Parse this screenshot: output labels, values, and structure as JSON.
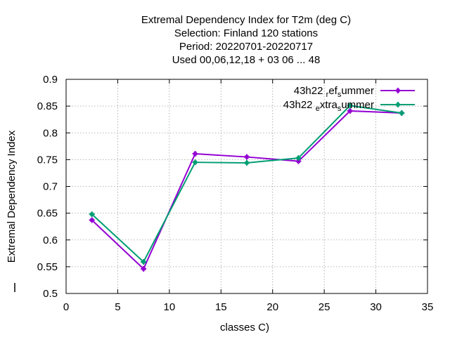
{
  "chart_data": {
    "type": "line",
    "title_lines": [
      "Extremal Dependency Index  for T2m (deg C)",
      "Selection: Finland    120 stations",
      "Period: 20220701-20220717",
      "Used  00,06,12,18  + 03 06 ... 48"
    ],
    "xlabel": "classes C)",
    "ylabel": "Extremal Dependency Index",
    "xlim": [
      0,
      35
    ],
    "ylim": [
      0.5,
      0.9
    ],
    "x_ticks": [
      "0",
      "5",
      "10",
      "15",
      "20",
      "25",
      "30",
      "35"
    ],
    "y_ticks": [
      "0.5",
      "0.55",
      "0.6",
      "0.65",
      "0.7",
      "0.75",
      "0.8",
      "0.85",
      "0.9"
    ],
    "grid": true,
    "legend_position": "top-right",
    "series": [
      {
        "legend_parts": [
          "43h22 ",
          "r",
          "ef",
          "s",
          "ummer"
        ],
        "color": "#9400d3",
        "x": [
          2.5,
          7.5,
          12.5,
          17.5,
          22.5,
          27.5,
          32.5
        ],
        "y": [
          0.637,
          0.546,
          0.761,
          0.755,
          0.747,
          0.841,
          0.837
        ]
      },
      {
        "legend_parts": [
          "43h22 ",
          "e",
          "xtra",
          "s",
          "ummer"
        ],
        "color": "#009e73",
        "x": [
          2.5,
          7.5,
          12.5,
          17.5,
          22.5,
          27.5,
          32.5
        ],
        "y": [
          0.648,
          0.559,
          0.745,
          0.744,
          0.753,
          0.851,
          0.837
        ]
      }
    ]
  }
}
